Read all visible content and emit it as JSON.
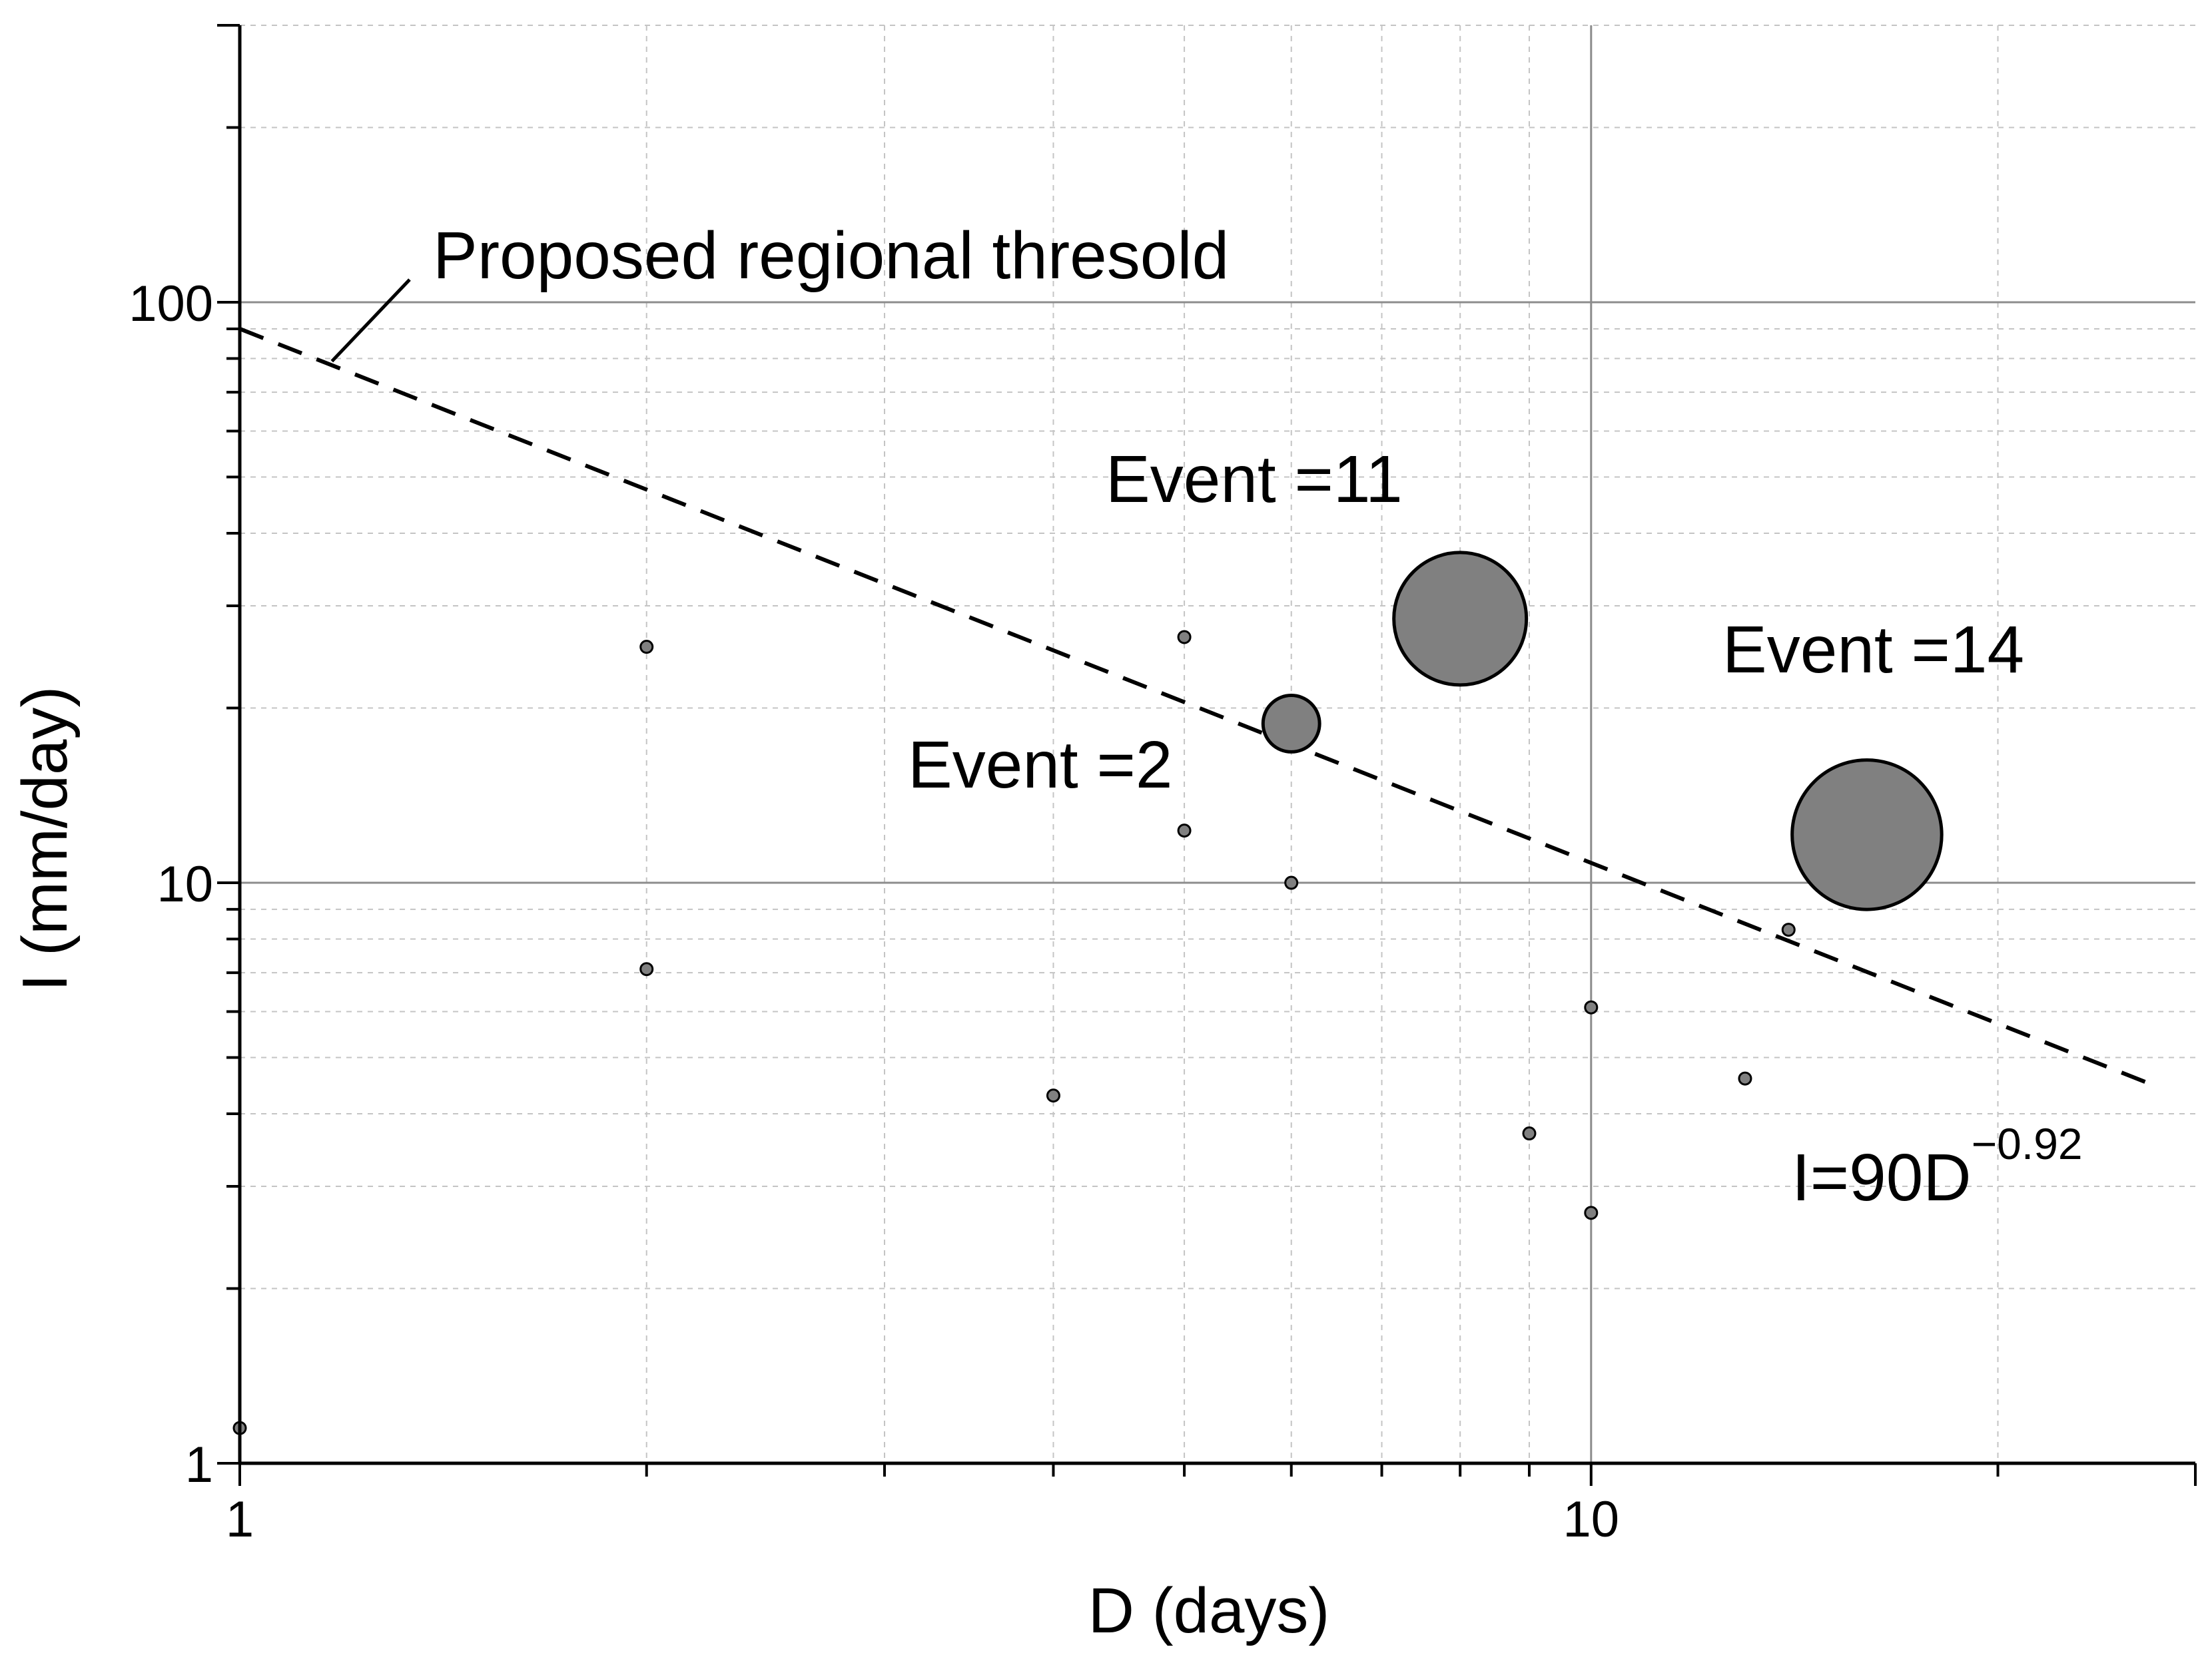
{
  "chart_data": {
    "type": "scatter",
    "title": "",
    "xlabel": "D (days)",
    "ylabel": "I (mm/day)",
    "xscale": "log",
    "yscale": "log",
    "xlim": [
      1,
      28
    ],
    "ylim": [
      1,
      300
    ],
    "grid": true,
    "legend": "none",
    "xticks": [
      {
        "value": 1,
        "label": "1"
      },
      {
        "value": 10,
        "label": "10"
      }
    ],
    "yticks": [
      {
        "value": 1,
        "label": "1"
      },
      {
        "value": 10,
        "label": "10"
      },
      {
        "value": 100,
        "label": "100"
      }
    ],
    "point_color": "#808080",
    "points": [
      {
        "x": 1.0,
        "y": 1.15,
        "events": 1
      },
      {
        "x": 2.0,
        "y": 25.5,
        "events": 1
      },
      {
        "x": 2.0,
        "y": 7.1,
        "events": 1
      },
      {
        "x": 4.0,
        "y": 4.3,
        "events": 1
      },
      {
        "x": 5.0,
        "y": 26.5,
        "events": 1
      },
      {
        "x": 5.0,
        "y": 12.3,
        "events": 1
      },
      {
        "x": 6.0,
        "y": 10.0,
        "events": 1
      },
      {
        "x": 6.0,
        "y": 18.8,
        "events": 2,
        "label": "Event =2"
      },
      {
        "x": 8.0,
        "y": 28.5,
        "events": 11,
        "label": "Event =11"
      },
      {
        "x": 9.0,
        "y": 3.7,
        "events": 1
      },
      {
        "x": 10.0,
        "y": 6.1,
        "events": 1
      },
      {
        "x": 10.0,
        "y": 2.7,
        "events": 1
      },
      {
        "x": 13.0,
        "y": 4.6,
        "events": 1
      },
      {
        "x": 14.0,
        "y": 8.3,
        "events": 1
      },
      {
        "x": 16.0,
        "y": 12.1,
        "events": 14,
        "label": "Event =14"
      }
    ],
    "threshold": {
      "label": "Proposed regional thresold",
      "equation_base": "I=90D",
      "equation_exponent": "−0.92",
      "coefficient": 90,
      "exponent": -0.92,
      "x_range": [
        1,
        26
      ]
    }
  }
}
